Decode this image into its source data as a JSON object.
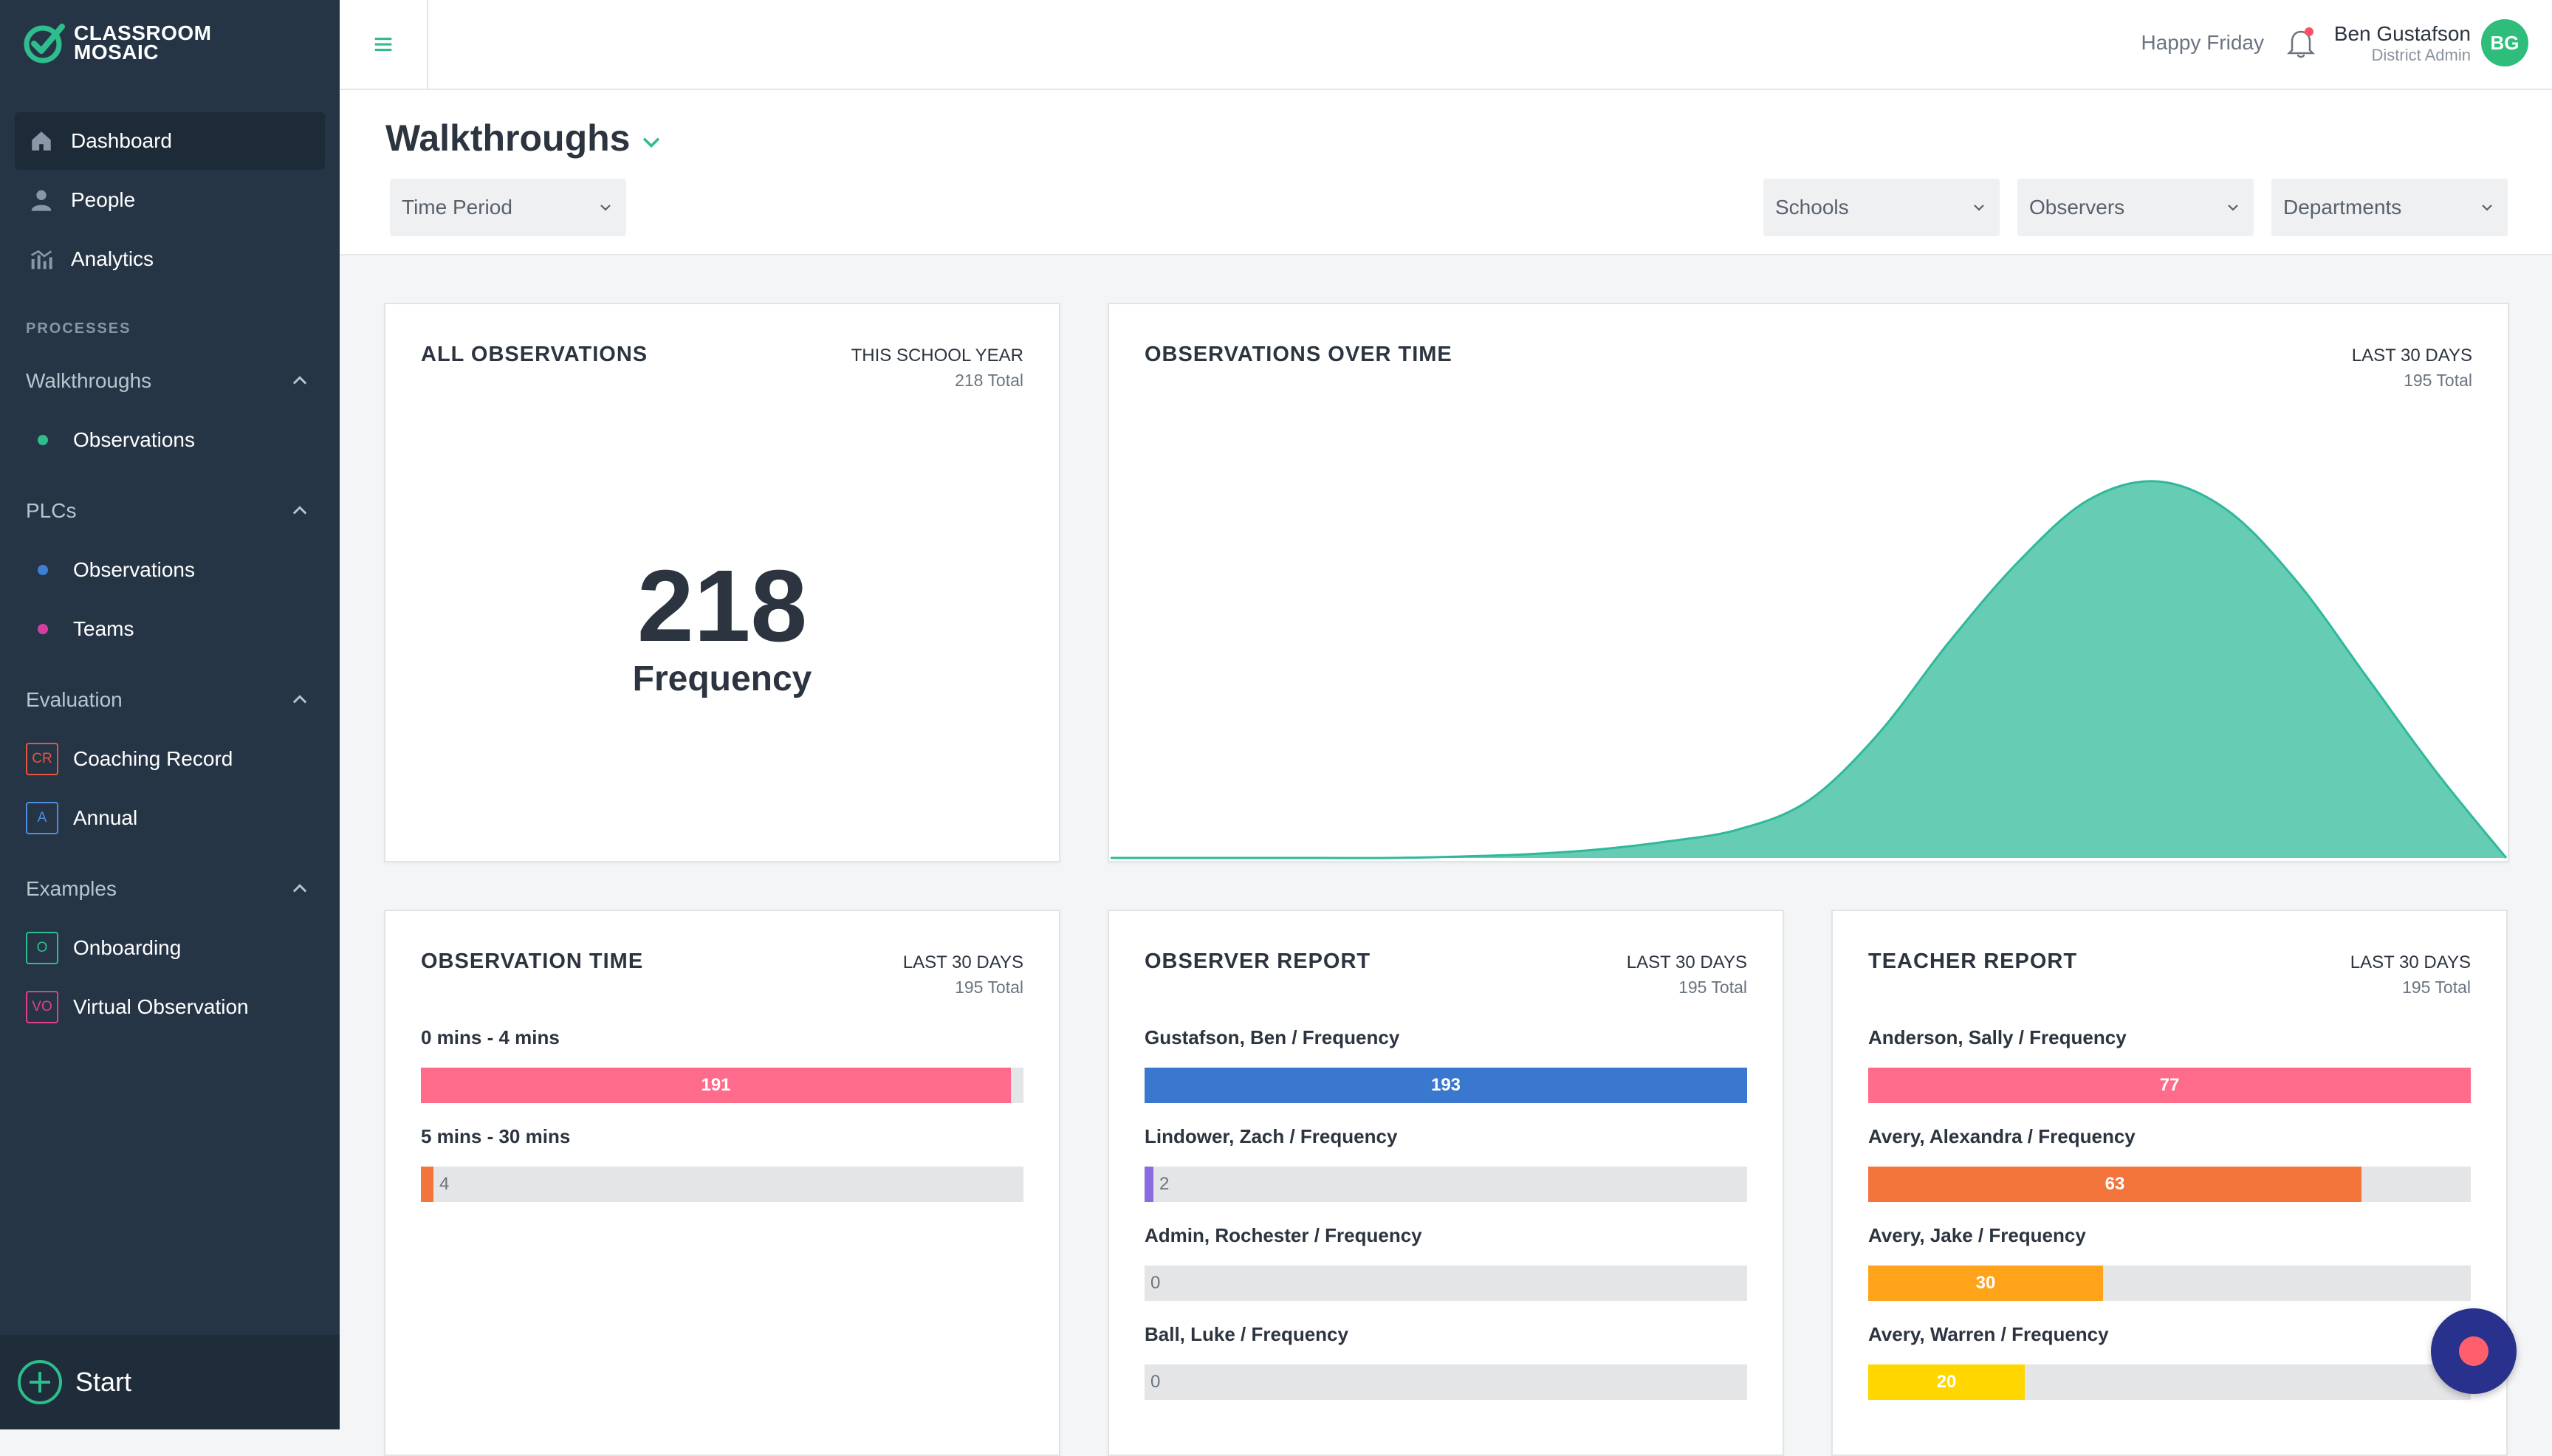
{
  "brand": {
    "line1": "CLASSROOM",
    "line2": "MOSAIC"
  },
  "sidebar": {
    "nav": [
      {
        "label": "Dashboard",
        "icon": "home-icon"
      },
      {
        "label": "People",
        "icon": "person-icon"
      },
      {
        "label": "Analytics",
        "icon": "analytics-icon"
      }
    ],
    "processes_label": "PROCESSES",
    "groups": [
      {
        "label": "Walkthroughs",
        "items": [
          {
            "label": "Observations",
            "dot": "#2ebd8c"
          }
        ]
      },
      {
        "label": "PLCs",
        "items": [
          {
            "label": "Observations",
            "dot": "#3e7fd6"
          },
          {
            "label": "Teams",
            "dot": "#d23fa0"
          }
        ]
      },
      {
        "label": "Evaluation",
        "items": [
          {
            "label": "Coaching Record",
            "badge": "CR",
            "badge_color": "#e8553d"
          },
          {
            "label": "Annual",
            "badge": "A",
            "badge_color": "#4a8fe0"
          }
        ]
      },
      {
        "label": "Examples",
        "items": [
          {
            "label": "Onboarding",
            "badge": "O",
            "badge_color": "#2ebd8c"
          },
          {
            "label": "Virtual Observation",
            "badge": "VO",
            "badge_color": "#e23f8a"
          }
        ]
      }
    ],
    "start_label": "Start"
  },
  "header": {
    "greeting": "Happy Friday",
    "user_name": "Ben Gustafson",
    "user_role": "District Admin",
    "avatar_initials": "BG"
  },
  "filters": {
    "title": "Walkthroughs",
    "time_period": "Time Period",
    "schools": "Schools",
    "observers": "Observers",
    "departments": "Departments"
  },
  "cards": {
    "all_observations": {
      "title": "ALL OBSERVATIONS",
      "period": "THIS SCHOOL YEAR",
      "total": "218 Total",
      "value": "218",
      "value_label": "Frequency"
    },
    "over_time": {
      "title": "OBSERVATIONS OVER TIME",
      "period": "LAST 30 DAYS",
      "total": "195 Total"
    },
    "observation_time": {
      "title": "OBSERVATION TIME",
      "period": "LAST 30 DAYS",
      "total": "195 Total",
      "max": 195,
      "rows": [
        {
          "label": "0 mins - 4 mins",
          "value": 191,
          "color": "#ff6b8a"
        },
        {
          "label": "5 mins - 30 mins",
          "value": 4,
          "color": "#f4753c"
        }
      ]
    },
    "observer_report": {
      "title": "OBSERVER REPORT",
      "period": "LAST 30 DAYS",
      "total": "195 Total",
      "max": 193,
      "rows": [
        {
          "label": "Gustafson, Ben / Frequency",
          "value": 193,
          "color": "#3a78cf"
        },
        {
          "label": "Lindower, Zach / Frequency",
          "value": 2,
          "color": "#8a6be0"
        },
        {
          "label": "Admin, Rochester / Frequency",
          "value": 0,
          "color": "#3a78cf"
        },
        {
          "label": "Ball, Luke / Frequency",
          "value": 0,
          "color": "#3a78cf"
        }
      ]
    },
    "teacher_report": {
      "title": "TEACHER REPORT",
      "period": "LAST 30 DAYS",
      "total": "195 Total",
      "max": 77,
      "rows": [
        {
          "label": "Anderson, Sally / Frequency",
          "value": 77,
          "color": "#ff6b8a"
        },
        {
          "label": "Avery, Alexandra / Frequency",
          "value": 63,
          "color": "#f4753c"
        },
        {
          "label": "Avery, Jake / Frequency",
          "value": 30,
          "color": "#ffa31a"
        },
        {
          "label": "Avery, Warren / Frequency",
          "value": 20,
          "color": "#ffd600"
        }
      ]
    }
  },
  "chart_data": {
    "type": "area",
    "title": "OBSERVATIONS OVER TIME",
    "x": [
      0,
      1,
      2,
      3,
      4,
      5,
      6,
      7,
      8,
      9,
      10,
      11,
      12,
      13,
      14,
      15,
      16,
      17,
      18,
      19,
      20
    ],
    "values": [
      0,
      0,
      0,
      0,
      0,
      0.3,
      0.8,
      1.8,
      3.5,
      6,
      12,
      26,
      45,
      62,
      75,
      79,
      73,
      58,
      38,
      18,
      0
    ],
    "series_color": "#66cdb4",
    "grid": false
  },
  "colors": {
    "accent": "#2ebd8c",
    "sidebar": "#263546"
  }
}
